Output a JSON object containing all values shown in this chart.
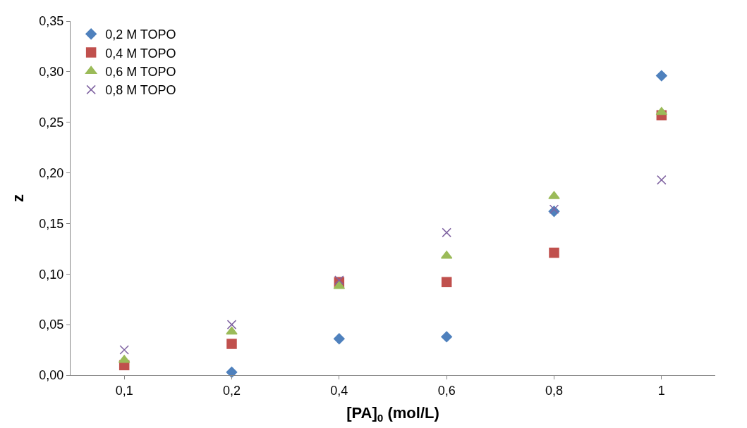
{
  "chart_data": {
    "type": "scatter",
    "xlabel": "[PA]$_{0}$ (mol/L)",
    "ylabel": "z",
    "categories": [
      "0,1",
      "0,2",
      "0,4",
      "0,6",
      "0,8",
      "1"
    ],
    "series": [
      {
        "name": "0,2 M TOPO",
        "color": "#4f81bd",
        "marker": "diamond",
        "values": [
          null,
          0.003,
          0.036,
          0.038,
          0.162,
          0.296
        ]
      },
      {
        "name": "0,4 M TOPO",
        "color": "#c0504d",
        "marker": "square",
        "values": [
          0.01,
          0.031,
          0.092,
          0.092,
          0.121,
          0.257
        ]
      },
      {
        "name": "0,6 M TOPO",
        "color": "#9bbb59",
        "marker": "triangle",
        "values": [
          0.015,
          0.043,
          0.088,
          0.118,
          0.177,
          0.26
        ]
      },
      {
        "name": "0,8 M TOPO",
        "color": "#8064a2",
        "marker": "cross",
        "values": [
          0.025,
          0.05,
          0.094,
          0.141,
          0.164,
          0.193
        ]
      }
    ],
    "ylim": [
      0,
      0.35
    ],
    "yticks": [
      {
        "value": 0,
        "label": "0,00"
      },
      {
        "value": 0.05,
        "label": "0,05"
      },
      {
        "value": 0.1,
        "label": "0,10"
      },
      {
        "value": 0.15,
        "label": "0,15"
      },
      {
        "value": 0.2,
        "label": "0,20"
      },
      {
        "value": 0.25,
        "label": "0,25"
      },
      {
        "value": 0.3,
        "label": "0,30"
      },
      {
        "value": 0.35,
        "label": "0,35"
      }
    ],
    "legend": "top left"
  }
}
